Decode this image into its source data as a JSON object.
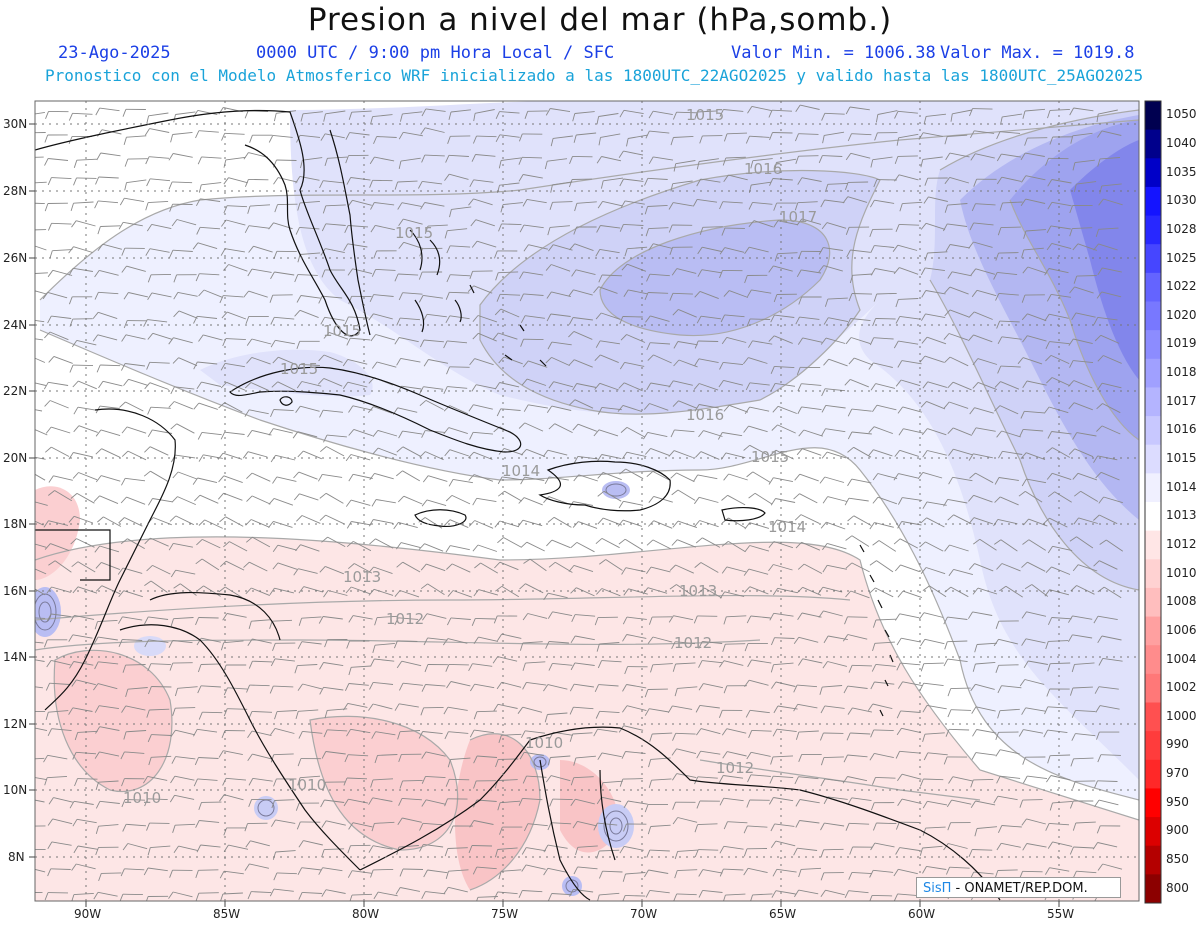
{
  "header": {
    "title": "Presion a nivel del mar (hPa,somb.)",
    "date": "23-Ago-2025",
    "time": "0000 UTC / 9:00 pm Hora Local / SFC",
    "vmin": "Valor Min. = 1006.38",
    "vmax": "Valor Max. = 1019.8",
    "model_line": "Pronostico con el Modelo Atmosferico WRF inicializado a las 1800UTC_22AGO2025 y valido hasta las  1800UTC_25AGO2025"
  },
  "axes": {
    "lat_labels": [
      "30N",
      "28N",
      "26N",
      "24N",
      "22N",
      "20N",
      "18N",
      "16N",
      "14N",
      "12N",
      "10N",
      "8N"
    ],
    "lon_labels": [
      "90W",
      "85W",
      "80W",
      "75W",
      "70W",
      "65W",
      "60W",
      "55W"
    ]
  },
  "colorbar": {
    "levels": [
      "1050",
      "1040",
      "1035",
      "1030",
      "1028",
      "1025",
      "1022",
      "1020",
      "1019",
      "1018",
      "1017",
      "1016",
      "1015",
      "1014",
      "1013",
      "1012",
      "1010",
      "1008",
      "1006",
      "1004",
      "1002",
      "1000",
      "990",
      "970",
      "950",
      "900",
      "850",
      "800"
    ],
    "colors": [
      "#000050",
      "#00008c",
      "#0000c8",
      "#1414ff",
      "#2828ff",
      "#4646ff",
      "#6464ff",
      "#7878ff",
      "#8c8cff",
      "#a0a0ff",
      "#b4b4ff",
      "#c8c8ff",
      "#dcdcff",
      "#f0f0ff",
      "#ffffff",
      "#ffe6e6",
      "#ffd2d2",
      "#ffbebe",
      "#ffa0a0",
      "#ff8c8c",
      "#ff7878",
      "#ff5050",
      "#ff3c3c",
      "#ff2828",
      "#ff0000",
      "#dc0000",
      "#b40000",
      "#8c0000"
    ]
  },
  "contour_labels": [
    "1015",
    "1016",
    "1017",
    "1015",
    "1015",
    "1015",
    "1016",
    "1015",
    "1014",
    "1014",
    "1013",
    "1013",
    "1012",
    "1012",
    "1012",
    "1010",
    "1010",
    "1010"
  ],
  "credit": {
    "brand": "SisΠ",
    "text": " - ONAMET/REP.DOM."
  }
}
